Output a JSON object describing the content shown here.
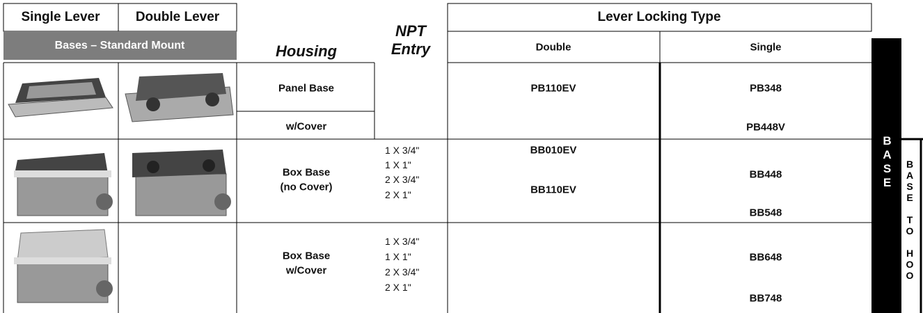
{
  "header": {
    "single_lever": "Single Lever",
    "double_lever": "Double Lever",
    "section": "Bases – Standard Mount",
    "housing": "Housing",
    "npt_entry": "NPT Entry",
    "lever_locking_type": "Lever Locking Type",
    "double": "Double",
    "single": "Single"
  },
  "rows": [
    {
      "housing": [
        "Panel Base",
        "w/Cover"
      ],
      "double": [
        "PB110EV"
      ],
      "single": [
        "PB348",
        "PB448V"
      ]
    },
    {
      "housing": [
        "Box Base",
        "(no Cover)"
      ],
      "npt": [
        "1 X 3/4\"",
        "1 X 1\"",
        "2 X 3/4\"",
        "2 X 1\""
      ],
      "double": [
        "BB010EV",
        "BB110EV"
      ],
      "single": [
        "BB448",
        "BB548"
      ]
    },
    {
      "housing": [
        "Box Base",
        "w/Cover"
      ],
      "npt": [
        "1 X 3/4\"",
        "1 X 1\"",
        "2 X 3/4\"",
        "2 X 1\""
      ],
      "single": [
        "BB648",
        "BB748"
      ]
    }
  ],
  "side_tabs": [
    "BASE",
    "BASE TO HOO"
  ]
}
